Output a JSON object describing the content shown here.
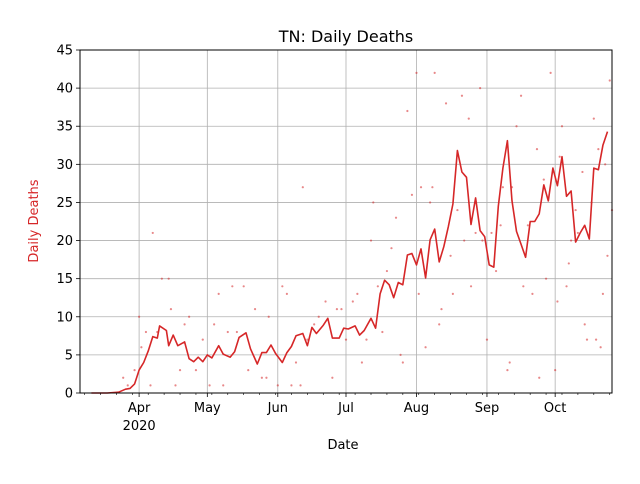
{
  "chart_data": {
    "type": "line",
    "title": "TN: Daily Deaths",
    "xlabel": "Date",
    "ylabel": "Daily Deaths",
    "ylim": [
      0,
      45
    ],
    "xlim": [
      "2020-03-06",
      "2020-10-26"
    ],
    "y_ticks": [
      0,
      5,
      10,
      15,
      20,
      25,
      30,
      35,
      40,
      45
    ],
    "x_ticks": [
      {
        "date": "2020-04-01",
        "label": "Apr",
        "sublabel": "2020"
      },
      {
        "date": "2020-05-01",
        "label": "May",
        "sublabel": ""
      },
      {
        "date": "2020-06-01",
        "label": "Jun",
        "sublabel": ""
      },
      {
        "date": "2020-07-01",
        "label": "Jul",
        "sublabel": ""
      },
      {
        "date": "2020-08-01",
        "label": "Aug",
        "sublabel": ""
      },
      {
        "date": "2020-09-01",
        "label": "Sep",
        "sublabel": ""
      },
      {
        "date": "2020-10-01",
        "label": "Oct",
        "sublabel": ""
      }
    ],
    "grid": true,
    "colors": {
      "line": "#d62728",
      "ylabel": "#d62728",
      "grid": "#b0b0b0"
    },
    "series": [
      {
        "kind": "line",
        "points": [
          [
            "2020-03-11",
            0
          ],
          [
            "2020-03-18",
            0
          ],
          [
            "2020-03-23",
            0.1
          ],
          [
            "2020-03-26",
            0.5
          ],
          [
            "2020-03-28",
            0.6
          ],
          [
            "2020-03-30",
            1.2
          ],
          [
            "2020-04-01",
            3
          ],
          [
            "2020-04-03",
            4
          ],
          [
            "2020-04-05",
            5.5
          ],
          [
            "2020-04-07",
            7.4
          ],
          [
            "2020-04-09",
            7.2
          ],
          [
            "2020-04-10",
            8.8
          ],
          [
            "2020-04-13",
            8.2
          ],
          [
            "2020-04-14",
            6.2
          ],
          [
            "2020-04-16",
            7.6
          ],
          [
            "2020-04-18",
            6.2
          ],
          [
            "2020-04-21",
            6.7
          ],
          [
            "2020-04-23",
            4.5
          ],
          [
            "2020-04-25",
            4.1
          ],
          [
            "2020-04-27",
            4.7
          ],
          [
            "2020-04-29",
            4.1
          ],
          [
            "2020-05-01",
            5
          ],
          [
            "2020-05-03",
            4.6
          ],
          [
            "2020-05-06",
            6.2
          ],
          [
            "2020-05-08",
            5.1
          ],
          [
            "2020-05-11",
            4.7
          ],
          [
            "2020-05-13",
            5.4
          ],
          [
            "2020-05-15",
            7.3
          ],
          [
            "2020-05-18",
            7.9
          ],
          [
            "2020-05-20",
            5.8
          ],
          [
            "2020-05-23",
            3.8
          ],
          [
            "2020-05-25",
            5.3
          ],
          [
            "2020-05-27",
            5.3
          ],
          [
            "2020-05-29",
            6.3
          ],
          [
            "2020-05-31",
            5.2
          ],
          [
            "2020-06-03",
            4
          ],
          [
            "2020-06-05",
            5.3
          ],
          [
            "2020-06-07",
            6.1
          ],
          [
            "2020-06-09",
            7.5
          ],
          [
            "2020-06-12",
            7.8
          ],
          [
            "2020-06-14",
            6.2
          ],
          [
            "2020-06-16",
            8.6
          ],
          [
            "2020-06-18",
            7.8
          ],
          [
            "2020-06-21",
            8.9
          ],
          [
            "2020-06-23",
            9.8
          ],
          [
            "2020-06-25",
            7.2
          ],
          [
            "2020-06-28",
            7.2
          ],
          [
            "2020-06-30",
            8.5
          ],
          [
            "2020-07-02",
            8.4
          ],
          [
            "2020-07-05",
            8.8
          ],
          [
            "2020-07-07",
            7.6
          ],
          [
            "2020-07-09",
            8.2
          ],
          [
            "2020-07-12",
            9.8
          ],
          [
            "2020-07-14",
            8.5
          ],
          [
            "2020-07-16",
            13
          ],
          [
            "2020-07-18",
            14.8
          ],
          [
            "2020-07-20",
            14.2
          ],
          [
            "2020-07-22",
            12.5
          ],
          [
            "2020-07-24",
            14.5
          ],
          [
            "2020-07-26",
            14.2
          ],
          [
            "2020-07-28",
            18.1
          ],
          [
            "2020-07-30",
            18.3
          ],
          [
            "2020-08-01",
            16.8
          ],
          [
            "2020-08-03",
            18.9
          ],
          [
            "2020-08-05",
            15.1
          ],
          [
            "2020-08-07",
            20.1
          ],
          [
            "2020-08-09",
            21.5
          ],
          [
            "2020-08-11",
            17.2
          ],
          [
            "2020-08-13",
            19.2
          ],
          [
            "2020-08-15",
            21.8
          ],
          [
            "2020-08-17",
            24.8
          ],
          [
            "2020-08-19",
            31.8
          ],
          [
            "2020-08-21",
            29
          ],
          [
            "2020-08-23",
            28.3
          ],
          [
            "2020-08-25",
            22.1
          ],
          [
            "2020-08-27",
            25.6
          ],
          [
            "2020-08-29",
            21.3
          ],
          [
            "2020-08-31",
            20.5
          ],
          [
            "2020-09-02",
            16.8
          ],
          [
            "2020-09-04",
            16.5
          ],
          [
            "2020-09-06",
            24.5
          ],
          [
            "2020-09-08",
            29.5
          ],
          [
            "2020-09-10",
            33.1
          ],
          [
            "2020-09-12",
            25.2
          ],
          [
            "2020-09-14",
            21.2
          ],
          [
            "2020-09-16",
            19.5
          ],
          [
            "2020-09-18",
            17.8
          ],
          [
            "2020-09-20",
            22.5
          ],
          [
            "2020-09-22",
            22.5
          ],
          [
            "2020-09-24",
            23.5
          ],
          [
            "2020-09-26",
            27.3
          ],
          [
            "2020-09-28",
            25.2
          ],
          [
            "2020-09-30",
            29.5
          ],
          [
            "2020-10-02",
            27.2
          ],
          [
            "2020-10-04",
            31
          ],
          [
            "2020-10-06",
            25.8
          ],
          [
            "2020-10-08",
            26.5
          ],
          [
            "2020-10-10",
            19.8
          ],
          [
            "2020-10-12",
            21
          ],
          [
            "2020-10-14",
            22
          ],
          [
            "2020-10-16",
            20.2
          ],
          [
            "2020-10-18",
            29.5
          ],
          [
            "2020-10-20",
            29.3
          ],
          [
            "2020-10-22",
            32.5
          ],
          [
            "2020-10-24",
            34.3
          ]
        ]
      },
      {
        "kind": "scatter",
        "points": [
          [
            "2020-03-25",
            2
          ],
          [
            "2020-03-27",
            1
          ],
          [
            "2020-03-30",
            3
          ],
          [
            "2020-04-01",
            10
          ],
          [
            "2020-04-02",
            6
          ],
          [
            "2020-04-04",
            8
          ],
          [
            "2020-04-06",
            1
          ],
          [
            "2020-04-07",
            21
          ],
          [
            "2020-04-09",
            8
          ],
          [
            "2020-04-11",
            15
          ],
          [
            "2020-04-14",
            15
          ],
          [
            "2020-04-15",
            11
          ],
          [
            "2020-04-17",
            1
          ],
          [
            "2020-04-19",
            3
          ],
          [
            "2020-04-21",
            9
          ],
          [
            "2020-04-23",
            10
          ],
          [
            "2020-04-26",
            3
          ],
          [
            "2020-04-29",
            7
          ],
          [
            "2020-05-02",
            1
          ],
          [
            "2020-05-04",
            9
          ],
          [
            "2020-05-06",
            13
          ],
          [
            "2020-05-08",
            1
          ],
          [
            "2020-05-10",
            8
          ],
          [
            "2020-05-12",
            14
          ],
          [
            "2020-05-14",
            8
          ],
          [
            "2020-05-17",
            14
          ],
          [
            "2020-05-19",
            3
          ],
          [
            "2020-05-22",
            11
          ],
          [
            "2020-05-25",
            2
          ],
          [
            "2020-05-27",
            2
          ],
          [
            "2020-05-28",
            10
          ],
          [
            "2020-06-01",
            1
          ],
          [
            "2020-06-03",
            14
          ],
          [
            "2020-06-05",
            13
          ],
          [
            "2020-06-07",
            1
          ],
          [
            "2020-06-09",
            4
          ],
          [
            "2020-06-11",
            1
          ],
          [
            "2020-06-12",
            27
          ],
          [
            "2020-06-14",
            7
          ],
          [
            "2020-06-17",
            9
          ],
          [
            "2020-06-19",
            10
          ],
          [
            "2020-06-22",
            12
          ],
          [
            "2020-06-25",
            2
          ],
          [
            "2020-06-27",
            11
          ],
          [
            "2020-06-29",
            11
          ],
          [
            "2020-07-01",
            7
          ],
          [
            "2020-07-04",
            12
          ],
          [
            "2020-07-06",
            13
          ],
          [
            "2020-07-08",
            4
          ],
          [
            "2020-07-10",
            7
          ],
          [
            "2020-07-12",
            20
          ],
          [
            "2020-07-13",
            25
          ],
          [
            "2020-07-15",
            14
          ],
          [
            "2020-07-17",
            8
          ],
          [
            "2020-07-19",
            16
          ],
          [
            "2020-07-21",
            19
          ],
          [
            "2020-07-23",
            23
          ],
          [
            "2020-07-25",
            5
          ],
          [
            "2020-07-26",
            4
          ],
          [
            "2020-07-28",
            37
          ],
          [
            "2020-07-30",
            26
          ],
          [
            "2020-08-01",
            42
          ],
          [
            "2020-08-02",
            13
          ],
          [
            "2020-08-03",
            27
          ],
          [
            "2020-08-05",
            6
          ],
          [
            "2020-08-07",
            25
          ],
          [
            "2020-08-08",
            27
          ],
          [
            "2020-08-09",
            42
          ],
          [
            "2020-08-11",
            9
          ],
          [
            "2020-08-12",
            11
          ],
          [
            "2020-08-14",
            38
          ],
          [
            "2020-08-16",
            18
          ],
          [
            "2020-08-17",
            13
          ],
          [
            "2020-08-19",
            24
          ],
          [
            "2020-08-21",
            39
          ],
          [
            "2020-08-22",
            20
          ],
          [
            "2020-08-24",
            36
          ],
          [
            "2020-08-25",
            14
          ],
          [
            "2020-08-27",
            21
          ],
          [
            "2020-08-29",
            40
          ],
          [
            "2020-08-30",
            20
          ],
          [
            "2020-09-01",
            7
          ],
          [
            "2020-09-03",
            21
          ],
          [
            "2020-09-05",
            16
          ],
          [
            "2020-09-07",
            22
          ],
          [
            "2020-09-08",
            27
          ],
          [
            "2020-09-10",
            3
          ],
          [
            "2020-09-11",
            4
          ],
          [
            "2020-09-12",
            27
          ],
          [
            "2020-09-14",
            35
          ],
          [
            "2020-09-16",
            39
          ],
          [
            "2020-09-17",
            14
          ],
          [
            "2020-09-19",
            22
          ],
          [
            "2020-09-21",
            13
          ],
          [
            "2020-09-23",
            32
          ],
          [
            "2020-09-24",
            2
          ],
          [
            "2020-09-26",
            28
          ],
          [
            "2020-09-27",
            15
          ],
          [
            "2020-09-29",
            42
          ],
          [
            "2020-10-01",
            3
          ],
          [
            "2020-10-02",
            12
          ],
          [
            "2020-10-03",
            31
          ],
          [
            "2020-10-04",
            35
          ],
          [
            "2020-10-06",
            14
          ],
          [
            "2020-10-07",
            17
          ],
          [
            "2020-10-08",
            20
          ],
          [
            "2020-10-10",
            24
          ],
          [
            "2020-10-11",
            21
          ],
          [
            "2020-10-13",
            29
          ],
          [
            "2020-10-14",
            9
          ],
          [
            "2020-10-15",
            7
          ],
          [
            "2020-10-17",
            25
          ],
          [
            "2020-10-18",
            36
          ],
          [
            "2020-10-19",
            7
          ],
          [
            "2020-10-20",
            32
          ],
          [
            "2020-10-21",
            6
          ],
          [
            "2020-10-22",
            13
          ],
          [
            "2020-10-23",
            30
          ],
          [
            "2020-10-24",
            18
          ],
          [
            "2020-10-25",
            41
          ],
          [
            "2020-10-26",
            24
          ]
        ]
      }
    ]
  }
}
